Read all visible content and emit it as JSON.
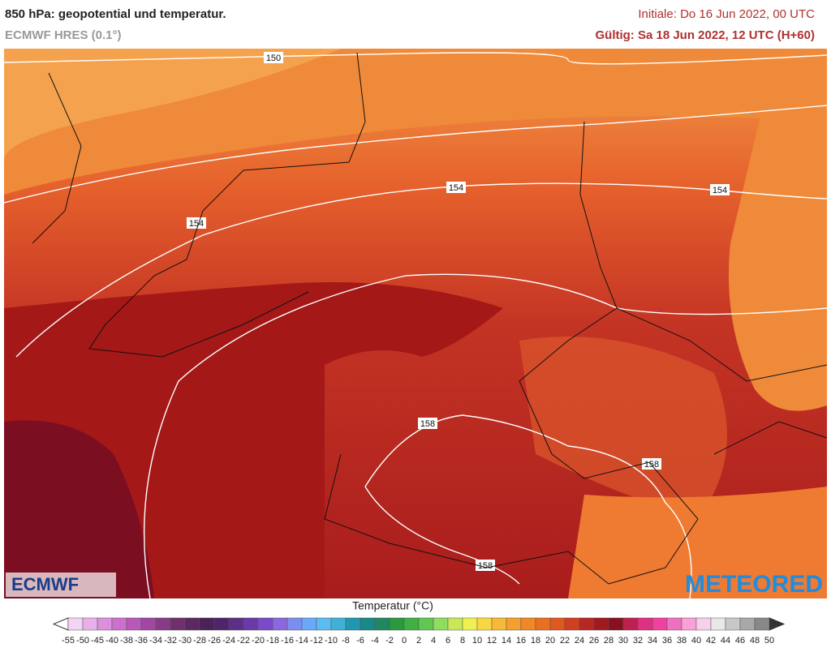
{
  "header": {
    "title": "850 hPa: geopotential und temperatur.",
    "model": "ECMWF HRES (0.1°)",
    "init": "Initiale: Do 16 Jun 2022, 00 UTC",
    "valid": "Gültig: Sa 18 Jun 2022, 12 UTC (H+60)"
  },
  "map": {
    "contour_labels": [
      "150",
      "154",
      "154",
      "154",
      "158",
      "158",
      "158"
    ]
  },
  "logos": {
    "left": "ECMWF",
    "right": "METEORED"
  },
  "legend": {
    "title": "Temperatur (°C)",
    "ticks": [
      -55,
      -50,
      -45,
      -40,
      -38,
      -36,
      -34,
      -32,
      -30,
      -28,
      -26,
      -24,
      -22,
      -20,
      -18,
      -16,
      -14,
      -12,
      -10,
      -8,
      -6,
      -4,
      -2,
      0,
      2,
      4,
      6,
      8,
      10,
      12,
      14,
      16,
      18,
      20,
      22,
      24,
      26,
      28,
      30,
      32,
      34,
      36,
      38,
      40,
      42,
      44,
      46,
      48,
      50
    ],
    "colors": [
      "#f4d4f4",
      "#e8b0e8",
      "#dc90dc",
      "#cc70cc",
      "#b858b8",
      "#a048a0",
      "#883c88",
      "#703070",
      "#5c2860",
      "#4c2058",
      "#502468",
      "#5e2e88",
      "#6c3aa8",
      "#7a4ac8",
      "#8c68e0",
      "#7c8cf0",
      "#6ca8f8",
      "#5cbcf0",
      "#40b0d8",
      "#2098b0",
      "#1a8888",
      "#208860",
      "#2a9a40",
      "#40b040",
      "#60c850",
      "#90dc60",
      "#c8e858",
      "#f0f050",
      "#f8d840",
      "#f8b838",
      "#f4a030",
      "#f08828",
      "#e87020",
      "#e05820",
      "#d04020",
      "#b82820",
      "#a01820",
      "#881020",
      "#c02050",
      "#e03080",
      "#f040a0",
      "#f070c0",
      "#f8a0d8",
      "#f8d0ec",
      "#e8e8e8",
      "#c8c8c8",
      "#a8a8a8",
      "#888888"
    ]
  }
}
